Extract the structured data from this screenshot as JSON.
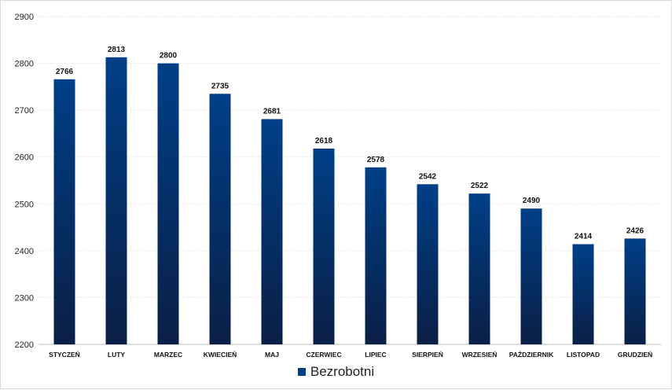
{
  "chart_data": {
    "type": "bar",
    "categories": [
      "STYCZEŃ",
      "LUTY",
      "MARZEC",
      "KWIECIEŃ",
      "MAJ",
      "CZERWIEC",
      "LIPIEC",
      "SIERPIEŃ",
      "WRZESIEŃ",
      "PAŹDZIERNIK",
      "LISTOPAD",
      "GRUDZIEŃ"
    ],
    "series": [
      {
        "name": "Bezrobotni",
        "values": [
          2766,
          2813,
          2800,
          2735,
          2681,
          2618,
          2578,
          2542,
          2522,
          2490,
          2414,
          2426
        ]
      }
    ],
    "ylim": [
      2200,
      2900
    ],
    "yticks": [
      2200,
      2300,
      2400,
      2500,
      2600,
      2700,
      2800,
      2900
    ],
    "grid": true,
    "legend_position": "bottom",
    "colors": {
      "bar_top": "#003f87",
      "bar_bottom": "#0a1f45",
      "grid": "#d9d9d9"
    }
  }
}
